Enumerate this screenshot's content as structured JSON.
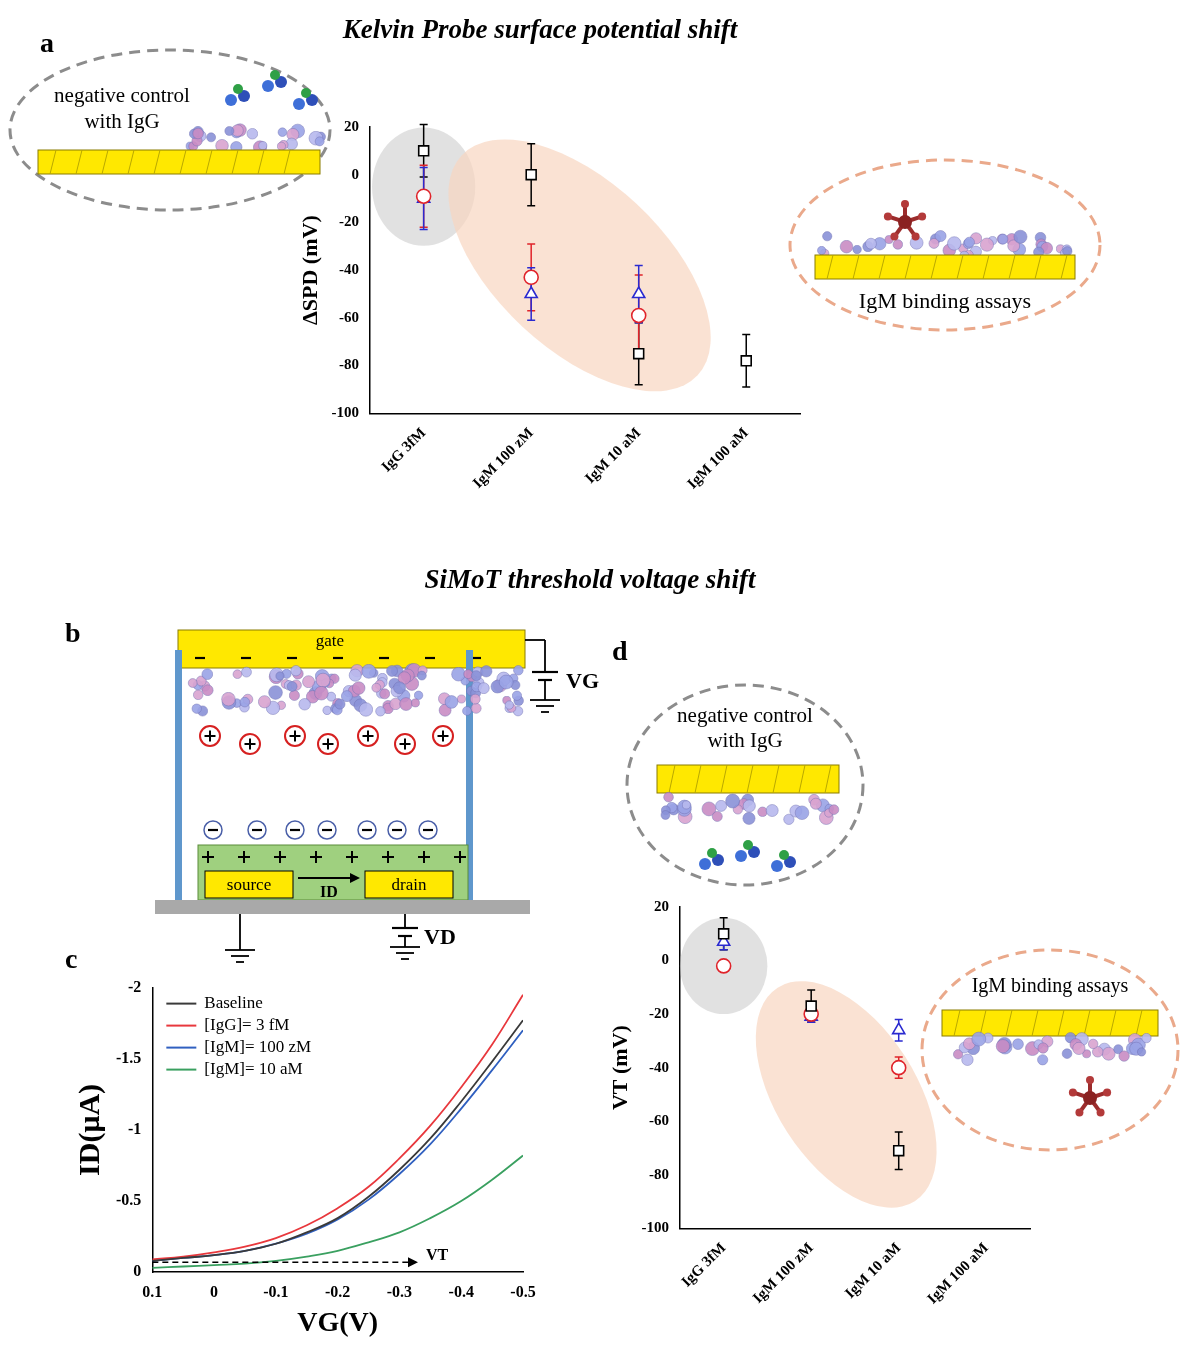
{
  "figure": {
    "headings": [
      "Kelvin Probe surface potential shift",
      "SiMoT threshold voltage shift"
    ],
    "diagram": {
      "panel": "b",
      "gate": "gate",
      "gate_voltage": "VG",
      "source": "source",
      "drain": "drain",
      "current": "ID",
      "drain_voltage": "VD"
    }
  },
  "chart_data": [
    {
      "panel": "a",
      "type": "scatter",
      "y_label": "ΔSPD (mV)",
      "categories": [
        "IgG 3fM",
        "IgM 100 zM",
        "IgM 10 aM",
        "IgM 100 aM"
      ],
      "ylim": [
        -100,
        20
      ],
      "yticks": [
        -100,
        -80,
        -60,
        -40,
        -20,
        0,
        20
      ],
      "grid": false,
      "series": [
        {
          "color": "#000000",
          "marker": "square",
          "values": [
            10,
            0,
            -75,
            -78
          ],
          "errors": [
            11,
            13,
            13,
            11
          ]
        },
        {
          "color": "#e0242b",
          "marker": "circle",
          "values": [
            -9,
            -43,
            -59,
            null
          ],
          "errors": [
            13,
            14,
            17,
            null
          ]
        },
        {
          "color": "#2a2ad0",
          "marker": "triangle",
          "values": [
            -10,
            -50,
            -50,
            null
          ],
          "errors": [
            13,
            11,
            12,
            null
          ]
        }
      ],
      "annotations": [
        "negative control with IgG",
        "IgM binding assays"
      ]
    },
    {
      "panel": "c",
      "type": "line",
      "x_label": "VG(V)",
      "y_label": "ID(μA)",
      "x": [
        0.1,
        0.05,
        0,
        -0.05,
        -0.1,
        -0.15,
        -0.2,
        -0.25,
        -0.3,
        -0.35,
        -0.4,
        -0.45,
        -0.5
      ],
      "xlim": [
        0.1,
        -0.5
      ],
      "xticks": [
        0.1,
        0,
        -0.1,
        -0.2,
        -0.3,
        -0.4,
        -0.5
      ],
      "ylim": [
        0,
        -2
      ],
      "yticks": [
        0,
        -0.5,
        -1,
        -1.5,
        -2
      ],
      "grid": false,
      "legend": "upper left",
      "series": [
        {
          "name": "Baseline",
          "color": "#3a3a3a",
          "values": [
            -0.08,
            -0.1,
            -0.12,
            -0.15,
            -0.2,
            -0.28,
            -0.38,
            -0.53,
            -0.72,
            -0.94,
            -1.2,
            -1.48,
            -1.77
          ]
        },
        {
          "name": "[IgG]= 3 fM",
          "color": "#e8383d",
          "values": [
            -0.09,
            -0.11,
            -0.14,
            -0.18,
            -0.24,
            -0.33,
            -0.45,
            -0.6,
            -0.8,
            -1.03,
            -1.3,
            -1.6,
            -1.95
          ]
        },
        {
          "name": "[IgM]= 100 zM",
          "color": "#3060c0",
          "values": [
            -0.08,
            -0.1,
            -0.12,
            -0.15,
            -0.2,
            -0.27,
            -0.37,
            -0.51,
            -0.69,
            -0.9,
            -1.15,
            -1.42,
            -1.7
          ]
        },
        {
          "name": "[IgM]= 10 aM",
          "color": "#3aa060",
          "values": [
            -0.03,
            -0.04,
            -0.05,
            -0.06,
            -0.08,
            -0.11,
            -0.15,
            -0.21,
            -0.28,
            -0.38,
            -0.5,
            -0.65,
            -0.82
          ]
        }
      ],
      "annotations": [
        {
          "text": "VT",
          "x": [
            0.1,
            -0.33
          ],
          "y": -0.07
        }
      ]
    },
    {
      "panel": "d",
      "type": "scatter",
      "y_label": "VT (mV)",
      "categories": [
        "IgG 3fM",
        "IgM 100 zM",
        "IgM 10 aM",
        "IgM 100 aM"
      ],
      "ylim": [
        -100,
        20
      ],
      "yticks": [
        -100,
        -80,
        -60,
        -40,
        -20,
        0,
        20
      ],
      "grid": false,
      "series": [
        {
          "color": "#000000",
          "marker": "square",
          "values": [
            10,
            -17,
            -71,
            null
          ],
          "errors": [
            6,
            6,
            7,
            null
          ]
        },
        {
          "color": "#e0242b",
          "marker": "circle",
          "values": [
            -2,
            -20,
            -40,
            null
          ],
          "errors": [
            2,
            3,
            4,
            null
          ]
        },
        {
          "color": "#2a2ad0",
          "marker": "triangle",
          "values": [
            7,
            -21,
            -26,
            null
          ],
          "errors": [
            3,
            2,
            4,
            null
          ]
        }
      ],
      "annotations": [
        "negative control with IgG",
        "IgM binding assays"
      ]
    }
  ]
}
